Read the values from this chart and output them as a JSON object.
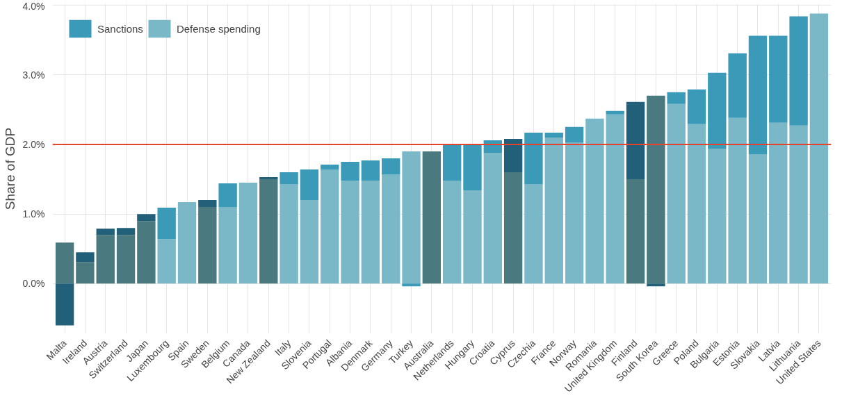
{
  "chart_data": {
    "type": "bar",
    "stacked": true,
    "ylabel": "Share of GDP",
    "categories": [
      "Malta",
      "Ireland",
      "Austria",
      "Switzerland",
      "Japan",
      "Luxembourg",
      "Spain",
      "Sweden",
      "Belgium",
      "Canada",
      "New Zealand",
      "Italy",
      "Slovenia",
      "Portugal",
      "Albania",
      "Denmark",
      "Germany",
      "Turkey",
      "Australia",
      "Netherlands",
      "Hungary",
      "Croatia",
      "Cyprus",
      "Czechia",
      "France",
      "Norway",
      "Romania",
      "United Kingdom",
      "Finland",
      "South Korea",
      "Greece",
      "Poland",
      "Bulgaria",
      "Estonia",
      "Slovakia",
      "Latvia",
      "Lithuania",
      "United States"
    ],
    "series": [
      {
        "name": "Defense spending",
        "color": "#7ab8c8",
        "values": [
          0.59,
          0.31,
          0.7,
          0.7,
          0.9,
          0.64,
          1.17,
          1.1,
          1.1,
          1.45,
          1.5,
          1.43,
          1.2,
          1.64,
          1.48,
          1.48,
          1.57,
          1.9,
          1.9,
          1.48,
          1.34,
          1.88,
          1.6,
          1.43,
          2.1,
          2.03,
          2.37,
          2.43,
          1.5,
          2.7,
          2.58,
          2.29,
          1.94,
          2.38,
          1.86,
          2.31,
          2.27,
          3.88
        ],
        "colors": [
          "#4a7a80",
          "#4a7a80",
          "#4a7a80",
          "#4a7a80",
          "#4a7a80",
          "#7ab8c8",
          "#7ab8c8",
          "#4a7a80",
          "#7ab8c8",
          "#7ab8c8",
          "#4a7a80",
          "#7ab8c8",
          "#7ab8c8",
          "#7ab8c8",
          "#7ab8c8",
          "#7ab8c8",
          "#7ab8c8",
          "#7ab8c8",
          "#4a7a80",
          "#7ab8c8",
          "#7ab8c8",
          "#7ab8c8",
          "#4a7a80",
          "#7ab8c8",
          "#7ab8c8",
          "#7ab8c8",
          "#7ab8c8",
          "#7ab8c8",
          "#4a7a80",
          "#4a7a80",
          "#7ab8c8",
          "#7ab8c8",
          "#7ab8c8",
          "#7ab8c8",
          "#7ab8c8",
          "#7ab8c8",
          "#7ab8c8",
          "#7ab8c8"
        ]
      },
      {
        "name": "Sanctions",
        "color": "#3a9ab8",
        "values": [
          -0.6,
          0.14,
          0.09,
          0.1,
          0.1,
          0.45,
          0,
          0.1,
          0.34,
          0,
          0.03,
          0.17,
          0.44,
          0.07,
          0.27,
          0.29,
          0.23,
          -0.04,
          0,
          0.52,
          0.67,
          0.18,
          0.48,
          0.74,
          0.07,
          0.22,
          0,
          0.05,
          1.11,
          -0.04,
          0.17,
          0.5,
          1.09,
          0.93,
          1.7,
          1.25,
          1.57,
          0
        ],
        "colors": [
          "#22607a",
          "#22607a",
          "#22607a",
          "#22607a",
          "#22607a",
          "#3a9ab8",
          "#3a9ab8",
          "#22607a",
          "#3a9ab8",
          "#3a9ab8",
          "#22607a",
          "#3a9ab8",
          "#3a9ab8",
          "#3a9ab8",
          "#3a9ab8",
          "#3a9ab8",
          "#3a9ab8",
          "#3a9ab8",
          "#22607a",
          "#3a9ab8",
          "#3a9ab8",
          "#3a9ab8",
          "#22607a",
          "#3a9ab8",
          "#3a9ab8",
          "#3a9ab8",
          "#3a9ab8",
          "#3a9ab8",
          "#22607a",
          "#22607a",
          "#3a9ab8",
          "#3a9ab8",
          "#3a9ab8",
          "#3a9ab8",
          "#3a9ab8",
          "#3a9ab8",
          "#3a9ab8",
          "#3a9ab8"
        ]
      }
    ],
    "ylim": [
      -0.72,
      4.02
    ],
    "yticks": [
      {
        "value": 0,
        "label": "0.0%"
      },
      {
        "value": 1,
        "label": "1.0%"
      },
      {
        "value": 2,
        "label": "2.0%"
      },
      {
        "value": 3,
        "label": "3.0%"
      },
      {
        "value": 4,
        "label": "4.0%"
      }
    ],
    "ref_lines": [
      {
        "axis": "y",
        "value": 2,
        "label": null,
        "color": "#e8412c"
      }
    ],
    "grid": true,
    "legend": "top left"
  }
}
